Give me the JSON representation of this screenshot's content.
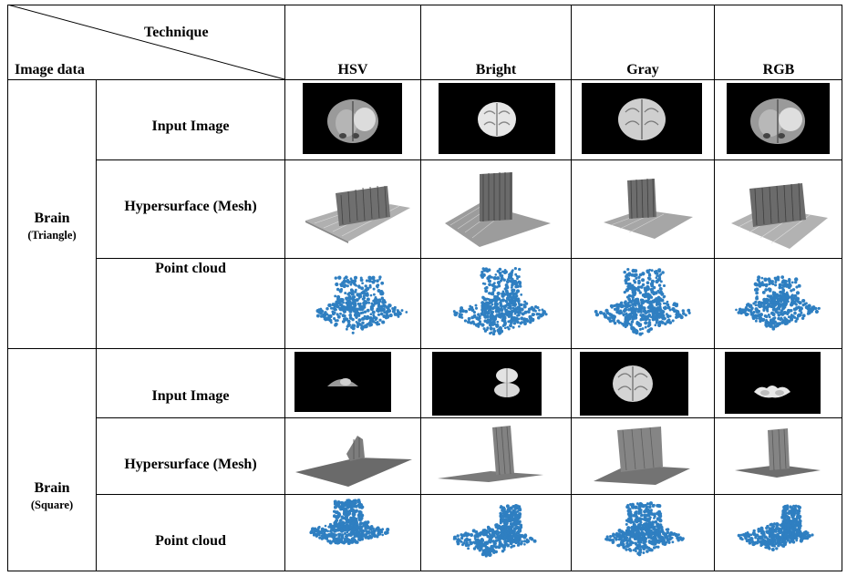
{
  "header": {
    "technique_label": "Technique",
    "image_data_label": "Image data",
    "columns": [
      "HSV",
      "Bright",
      "Gray",
      "RGB"
    ]
  },
  "groups": [
    {
      "name": "Brain",
      "sub": "(Triangle)"
    },
    {
      "name": "Brain",
      "sub": "(Square)"
    }
  ],
  "row_labels": {
    "input_image": "Input Image",
    "hypersurface": "Hypersurface (Mesh)",
    "point_cloud": "Point cloud"
  },
  "colors": {
    "point_cloud_blue": "#2f7fc1",
    "mesh_gray": "#7a7a7a",
    "thumb_bg": "#000000"
  }
}
